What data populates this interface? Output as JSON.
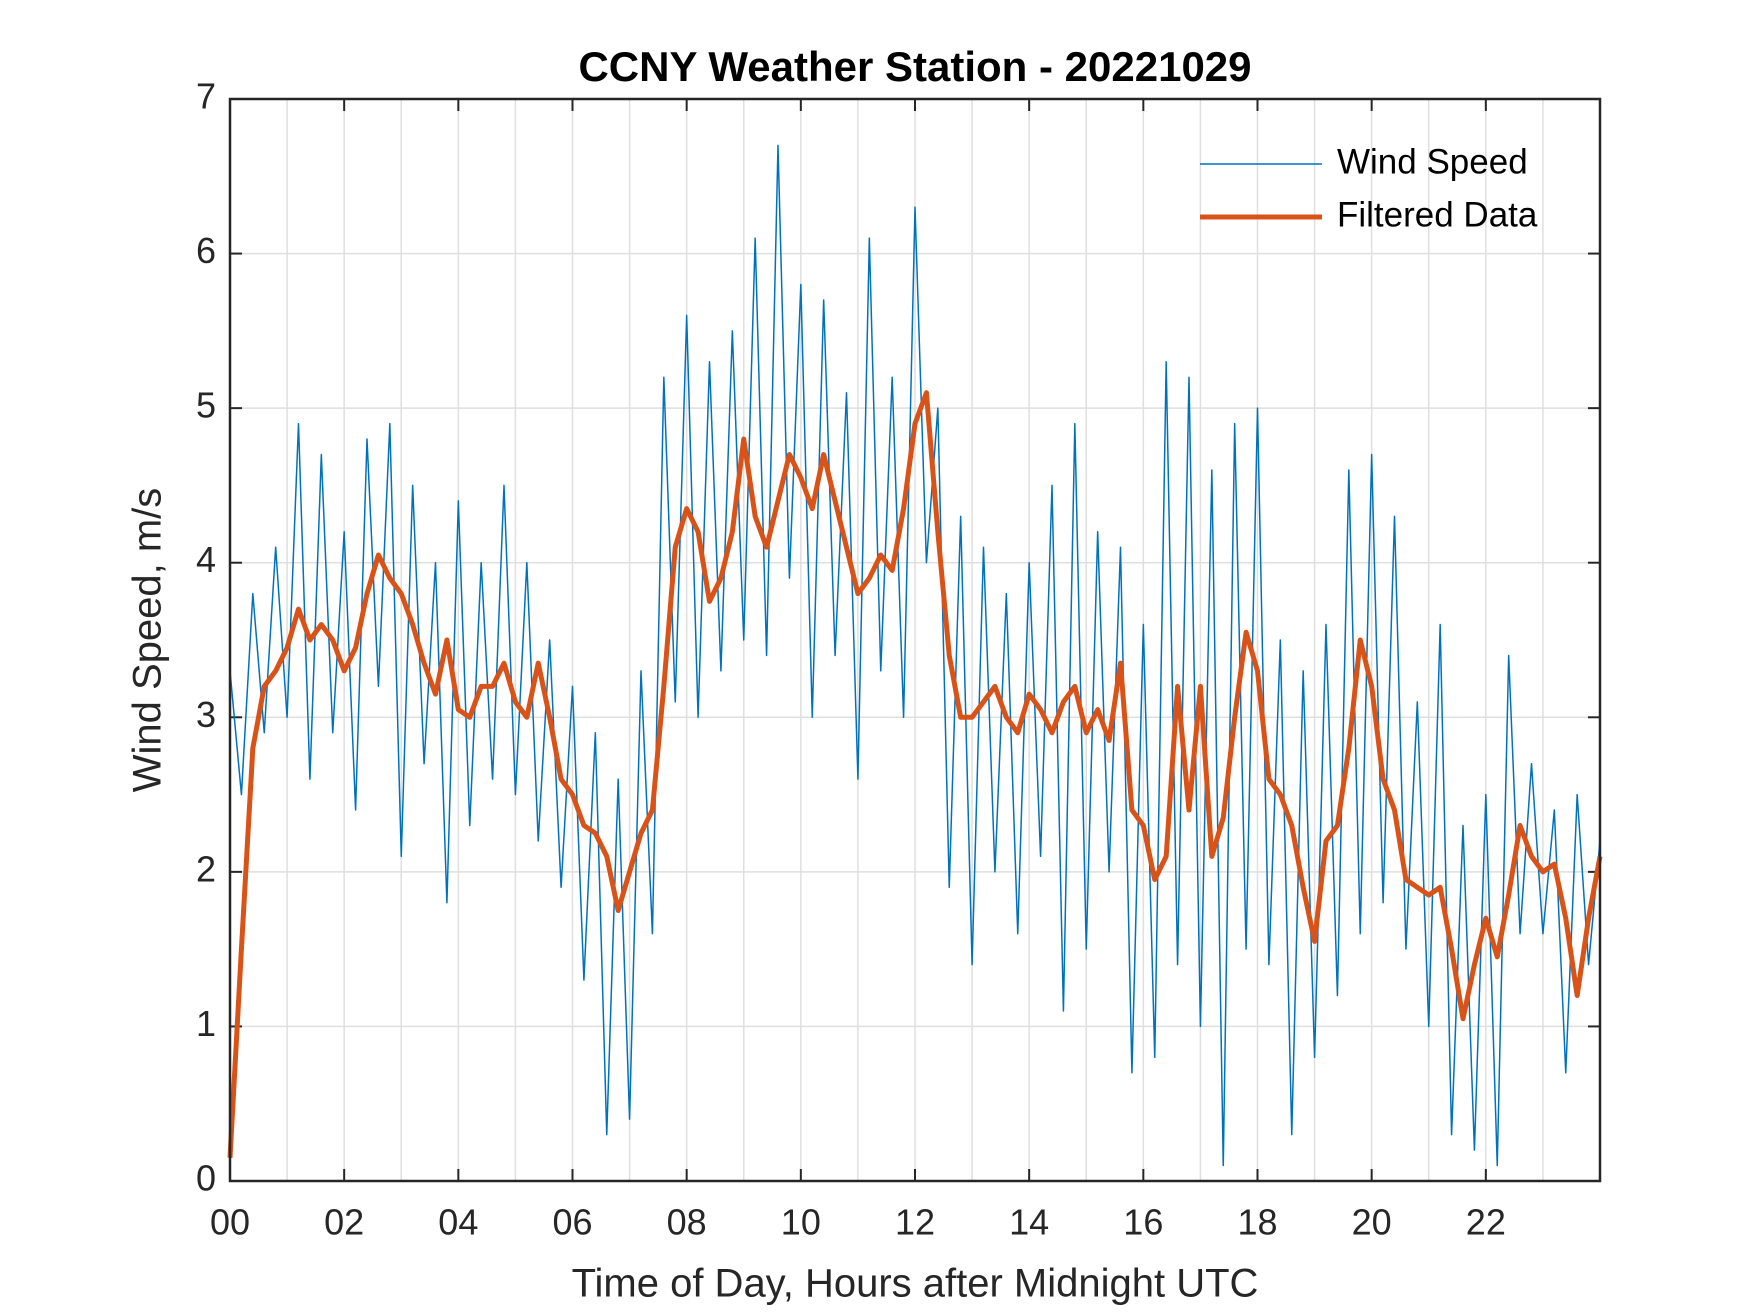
{
  "chart_data": {
    "type": "line",
    "title": "CCNY Weather Station - 20221029",
    "xlabel": "Time of Day, Hours after Midnight UTC",
    "ylabel": "Wind Speed, m/s",
    "x": [
      0,
      0.2,
      0.4,
      0.6,
      0.8,
      1,
      1.2,
      1.4,
      1.6,
      1.8,
      2,
      2.2,
      2.4,
      2.6,
      2.8,
      3,
      3.2,
      3.4,
      3.6,
      3.8,
      4,
      4.2,
      4.4,
      4.6,
      4.8,
      5,
      5.2,
      5.4,
      5.6,
      5.8,
      6,
      6.2,
      6.4,
      6.6,
      6.8,
      7,
      7.2,
      7.4,
      7.6,
      7.8,
      8,
      8.2,
      8.4,
      8.6,
      8.8,
      9,
      9.2,
      9.4,
      9.6,
      9.8,
      10,
      10.2,
      10.4,
      10.6,
      10.8,
      11,
      11.2,
      11.4,
      11.6,
      11.8,
      12,
      12.2,
      12.4,
      12.6,
      12.8,
      13,
      13.2,
      13.4,
      13.6,
      13.8,
      14,
      14.2,
      14.4,
      14.6,
      14.8,
      15,
      15.2,
      15.4,
      15.6,
      15.8,
      16,
      16.2,
      16.4,
      16.6,
      16.8,
      17,
      17.2,
      17.4,
      17.6,
      17.8,
      18,
      18.2,
      18.4,
      18.6,
      18.8,
      19,
      19.2,
      19.4,
      19.6,
      19.8,
      20,
      20.2,
      20.4,
      20.6,
      20.8,
      21,
      21.2,
      21.4,
      21.6,
      21.8,
      22,
      22.2,
      22.4,
      22.6,
      22.8,
      23,
      23.2,
      23.4,
      23.6,
      23.8,
      24
    ],
    "series": [
      {
        "name": "Wind Speed",
        "color": "#0072bd",
        "width": 1.5,
        "values": [
          3.3,
          2.5,
          3.8,
          2.9,
          4.1,
          3.0,
          4.9,
          2.6,
          4.7,
          2.9,
          4.2,
          2.4,
          4.8,
          3.2,
          4.9,
          2.1,
          4.5,
          2.7,
          4.0,
          1.8,
          4.4,
          2.3,
          4.0,
          2.6,
          4.5,
          2.5,
          4.0,
          2.2,
          3.5,
          1.9,
          3.2,
          1.3,
          2.9,
          0.3,
          2.6,
          0.4,
          3.3,
          1.6,
          5.2,
          3.1,
          5.6,
          3.0,
          5.3,
          3.3,
          5.5,
          3.5,
          6.1,
          3.4,
          6.7,
          3.9,
          5.8,
          3.0,
          5.7,
          3.4,
          5.1,
          2.6,
          6.1,
          3.3,
          5.2,
          3.0,
          6.3,
          4.0,
          5.0,
          1.9,
          4.3,
          1.4,
          4.1,
          2.0,
          3.8,
          1.6,
          4.0,
          2.1,
          4.5,
          1.1,
          4.9,
          1.5,
          4.2,
          2.0,
          4.1,
          0.7,
          3.6,
          0.8,
          5.3,
          1.4,
          5.2,
          1.0,
          4.6,
          0.1,
          4.9,
          1.5,
          5.0,
          1.4,
          3.5,
          0.3,
          3.3,
          0.8,
          3.6,
          1.2,
          4.6,
          1.6,
          4.7,
          1.8,
          4.3,
          1.5,
          3.1,
          1.0,
          3.6,
          0.3,
          2.3,
          0.2,
          2.5,
          0.1,
          3.4,
          1.6,
          2.7,
          1.6,
          2.4,
          0.7,
          2.5,
          1.4,
          2.2
        ]
      },
      {
        "name": "Filtered Data",
        "color": "#d95319",
        "width": 5,
        "values": [
          0.15,
          1.5,
          2.8,
          3.2,
          3.3,
          3.45,
          3.7,
          3.5,
          3.6,
          3.5,
          3.3,
          3.45,
          3.8,
          4.05,
          3.9,
          3.8,
          3.6,
          3.35,
          3.15,
          3.5,
          3.05,
          3.0,
          3.2,
          3.2,
          3.35,
          3.1,
          3.0,
          3.35,
          3.0,
          2.6,
          2.5,
          2.3,
          2.25,
          2.1,
          1.75,
          2.0,
          2.25,
          2.4,
          3.2,
          4.1,
          4.35,
          4.2,
          3.75,
          3.9,
          4.2,
          4.8,
          4.3,
          4.1,
          4.4,
          4.7,
          4.55,
          4.35,
          4.7,
          4.4,
          4.1,
          3.8,
          3.9,
          4.05,
          3.95,
          4.35,
          4.9,
          5.1,
          4.2,
          3.4,
          3.0,
          3.0,
          3.1,
          3.2,
          3.0,
          2.9,
          3.15,
          3.05,
          2.9,
          3.1,
          3.2,
          2.9,
          3.05,
          2.85,
          3.35,
          2.4,
          2.3,
          1.95,
          2.1,
          3.2,
          2.4,
          3.2,
          2.1,
          2.35,
          3.0,
          3.55,
          3.3,
          2.6,
          2.5,
          2.3,
          1.9,
          1.55,
          2.2,
          2.3,
          2.8,
          3.5,
          3.2,
          2.6,
          2.4,
          1.95,
          1.9,
          1.85,
          1.9,
          1.5,
          1.05,
          1.4,
          1.7,
          1.45,
          1.85,
          2.3,
          2.1,
          2.0,
          2.05,
          1.7,
          1.2,
          1.7,
          2.1
        ]
      }
    ],
    "xlim": [
      0,
      24
    ],
    "ylim": [
      0,
      7
    ],
    "xticks": [
      {
        "value": 0,
        "label": "00"
      },
      {
        "value": 2,
        "label": "02"
      },
      {
        "value": 4,
        "label": "04"
      },
      {
        "value": 6,
        "label": "06"
      },
      {
        "value": 8,
        "label": "08"
      },
      10,
      12,
      14,
      16,
      18,
      20,
      22
    ],
    "xminorticks": [
      1,
      3,
      5,
      7,
      9,
      11,
      13,
      15,
      17,
      19,
      21,
      23
    ],
    "yticks": [
      0,
      1,
      2,
      3,
      4,
      5,
      6,
      7
    ],
    "grid": true,
    "legend": "upper-right"
  }
}
